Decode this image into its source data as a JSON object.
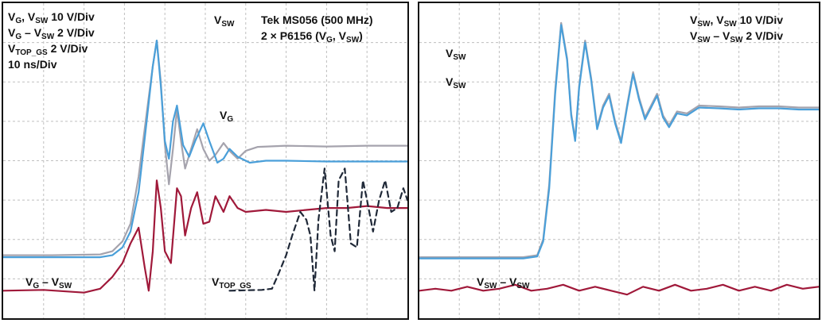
{
  "colors": {
    "vsw_trace": "#a5a3ad",
    "vg_trace": "#4a9fd9",
    "diff_trace": "#a0193a",
    "vtop_trace": "#202938",
    "grid": "#bfbfbf",
    "frame": "#111111"
  },
  "chart_data": [
    {
      "type": "line",
      "panel": "left",
      "grid": true,
      "grid_divisions": {
        "x": 10,
        "y": 8
      },
      "settings": {
        "scale_vg_vsw": {
          "V": "V",
          "g": "G",
          "comma": ", ",
          "vsw_sub": "SW",
          "rest": " 10 V/Div"
        },
        "scale_diff": {
          "V": "V",
          "g": "G",
          "dash": " – V",
          "sw": "SW",
          "rest": " 2 V/Div"
        },
        "scale_vtop": {
          "V": "V",
          "sub": "TOP_GS",
          "rest": " 2 V/Div"
        },
        "timebase": "10 ns/Div",
        "instrument": "Tek MS056 (500 MHz)",
        "probes": {
          "prefix": "2 × P6156 (V",
          "g": "G",
          "comma": ", V",
          "sw": "SW",
          "close": ")"
        }
      },
      "trace_labels": {
        "vsw": {
          "V": "V",
          "sub": "SW"
        },
        "vg": {
          "V": "V",
          "sub": "G"
        },
        "diff": {
          "V": "V",
          "g": "G",
          "dash": " – V",
          "sw": "SW"
        },
        "vtop": {
          "V": "V",
          "sub": "TOP_GS"
        }
      },
      "series": [
        {
          "key": "vsw",
          "label": "V_SW",
          "color": "#a5a3ad",
          "dashed": false,
          "points": [
            [
              0,
              6.4
            ],
            [
              1.2,
              6.4
            ],
            [
              2.4,
              6.38
            ],
            [
              2.7,
              6.3
            ],
            [
              2.95,
              6.05
            ],
            [
              3.15,
              5.6
            ],
            [
              3.35,
              4.4
            ],
            [
              3.55,
              2.8
            ],
            [
              3.7,
              1.6
            ],
            [
              3.8,
              0.95
            ],
            [
              3.9,
              2.0
            ],
            [
              4.0,
              3.6
            ],
            [
              4.1,
              4.6
            ],
            [
              4.2,
              3.7
            ],
            [
              4.3,
              2.7
            ],
            [
              4.4,
              3.5
            ],
            [
              4.5,
              4.2
            ],
            [
              4.65,
              3.7
            ],
            [
              4.8,
              3.2
            ],
            [
              4.95,
              3.7
            ],
            [
              5.1,
              4.0
            ],
            [
              5.25,
              3.85
            ],
            [
              5.45,
              3.55
            ],
            [
              5.6,
              3.75
            ],
            [
              5.8,
              3.95
            ],
            [
              6.0,
              3.75
            ],
            [
              6.3,
              3.65
            ],
            [
              7.0,
              3.62
            ],
            [
              8.0,
              3.64
            ],
            [
              9.0,
              3.62
            ],
            [
              10,
              3.62
            ]
          ]
        },
        {
          "key": "vg",
          "label": "V_G",
          "color": "#4a9fd9",
          "dashed": false,
          "points": [
            [
              0,
              6.45
            ],
            [
              1.2,
              6.45
            ],
            [
              2.4,
              6.45
            ],
            [
              2.7,
              6.4
            ],
            [
              2.95,
              6.2
            ],
            [
              3.15,
              5.8
            ],
            [
              3.35,
              4.8
            ],
            [
              3.55,
              3.0
            ],
            [
              3.7,
              1.6
            ],
            [
              3.8,
              0.95
            ],
            [
              3.9,
              2.1
            ],
            [
              4.0,
              3.5
            ],
            [
              4.1,
              3.95
            ],
            [
              4.2,
              3.0
            ],
            [
              4.3,
              2.6
            ],
            [
              4.45,
              3.6
            ],
            [
              4.6,
              3.9
            ],
            [
              4.75,
              3.5
            ],
            [
              4.95,
              3.05
            ],
            [
              5.1,
              3.5
            ],
            [
              5.3,
              4.05
            ],
            [
              5.45,
              3.95
            ],
            [
              5.6,
              3.7
            ],
            [
              5.8,
              3.9
            ],
            [
              6.1,
              4.05
            ],
            [
              6.5,
              4.0
            ],
            [
              7.0,
              4.0
            ],
            [
              8.0,
              4.02
            ],
            [
              9.0,
              4.02
            ],
            [
              10,
              4.02
            ]
          ]
        },
        {
          "key": "diff",
          "label": "V_G – V_SW",
          "color": "#a0193a",
          "dashed": false,
          "points": [
            [
              0,
              7.3
            ],
            [
              1.0,
              7.28
            ],
            [
              2.0,
              7.35
            ],
            [
              2.4,
              7.25
            ],
            [
              2.7,
              6.95
            ],
            [
              2.95,
              6.6
            ],
            [
              3.15,
              6.1
            ],
            [
              3.35,
              5.7
            ],
            [
              3.5,
              6.7
            ],
            [
              3.6,
              7.3
            ],
            [
              3.7,
              6.3
            ],
            [
              3.8,
              4.5
            ],
            [
              3.9,
              5.2
            ],
            [
              4.0,
              6.3
            ],
            [
              4.15,
              6.6
            ],
            [
              4.3,
              4.7
            ],
            [
              4.4,
              4.9
            ],
            [
              4.5,
              5.9
            ],
            [
              4.65,
              5.2
            ],
            [
              4.8,
              4.8
            ],
            [
              4.95,
              5.6
            ],
            [
              5.1,
              5.55
            ],
            [
              5.25,
              4.9
            ],
            [
              5.45,
              5.3
            ],
            [
              5.6,
              4.9
            ],
            [
              5.8,
              5.2
            ],
            [
              6.0,
              5.3
            ],
            [
              6.5,
              5.25
            ],
            [
              7.0,
              5.3
            ],
            [
              7.5,
              5.25
            ],
            [
              8.0,
              5.2
            ],
            [
              8.5,
              5.2
            ],
            [
              9.0,
              5.15
            ],
            [
              9.5,
              5.2
            ],
            [
              10,
              5.2
            ]
          ]
        },
        {
          "key": "vtop",
          "label": "V_TOP_GS",
          "color": "#202938",
          "dashed": true,
          "points": [
            [
              5.6,
              7.3
            ],
            [
              6.4,
              7.28
            ],
            [
              6.65,
              7.25
            ],
            [
              6.8,
              6.9
            ],
            [
              7.0,
              6.4
            ],
            [
              7.15,
              5.9
            ],
            [
              7.35,
              5.3
            ],
            [
              7.5,
              5.5
            ],
            [
              7.6,
              5.9
            ],
            [
              7.7,
              7.3
            ],
            [
              7.8,
              5.5
            ],
            [
              7.95,
              4.2
            ],
            [
              8.1,
              5.9
            ],
            [
              8.2,
              6.3
            ],
            [
              8.3,
              4.5
            ],
            [
              8.45,
              4.2
            ],
            [
              8.6,
              6.1
            ],
            [
              8.75,
              6.2
            ],
            [
              8.9,
              4.5
            ],
            [
              9.0,
              5.0
            ],
            [
              9.15,
              5.8
            ],
            [
              9.3,
              5.0
            ],
            [
              9.45,
              4.5
            ],
            [
              9.6,
              5.3
            ],
            [
              9.75,
              5.2
            ],
            [
              9.9,
              4.7
            ],
            [
              10,
              5.0
            ]
          ]
        }
      ]
    },
    {
      "type": "line",
      "panel": "right",
      "grid": true,
      "grid_divisions": {
        "x": 10,
        "y": 8
      },
      "settings": {
        "scale_vsw": {
          "V": "V",
          "sub1": "SW",
          "comma": ", V",
          "sub2": "SW",
          "rest": " 10 V/Div"
        },
        "scale_diff": {
          "V": "V",
          "sub1": "SW",
          "dash": " – V",
          "sub2": "SW",
          "rest": " 2 V/Div"
        }
      },
      "trace_labels": {
        "vsw_a": {
          "V": "V",
          "sub": "SW"
        },
        "vsw_b": {
          "V": "V",
          "sub": "SW"
        },
        "diff": {
          "V": "V",
          "sub1": "SW",
          "dash": " – V",
          "sub2": "SW"
        }
      },
      "series": [
        {
          "key": "vsw_a",
          "label": "V_SW",
          "color": "#a5a3ad",
          "dashed": false,
          "points": [
            [
              0,
              6.45
            ],
            [
              1.5,
              6.45
            ],
            [
              2.6,
              6.45
            ],
            [
              2.95,
              6.4
            ],
            [
              3.1,
              6.0
            ],
            [
              3.25,
              4.6
            ],
            [
              3.4,
              2.2
            ],
            [
              3.55,
              0.5
            ],
            [
              3.7,
              1.4
            ],
            [
              3.8,
              2.8
            ],
            [
              3.9,
              3.45
            ],
            [
              4.0,
              2.1
            ],
            [
              4.15,
              0.95
            ],
            [
              4.3,
              1.9
            ],
            [
              4.45,
              3.15
            ],
            [
              4.6,
              2.6
            ],
            [
              4.75,
              2.3
            ],
            [
              4.9,
              3.0
            ],
            [
              5.05,
              3.5
            ],
            [
              5.2,
              2.6
            ],
            [
              5.35,
              1.75
            ],
            [
              5.5,
              2.4
            ],
            [
              5.65,
              2.9
            ],
            [
              5.8,
              2.6
            ],
            [
              5.95,
              2.3
            ],
            [
              6.1,
              2.85
            ],
            [
              6.25,
              3.1
            ],
            [
              6.45,
              2.75
            ],
            [
              6.7,
              2.8
            ],
            [
              7.0,
              2.6
            ],
            [
              7.5,
              2.62
            ],
            [
              8.0,
              2.65
            ],
            [
              8.5,
              2.62
            ],
            [
              9.0,
              2.62
            ],
            [
              9.5,
              2.65
            ],
            [
              10,
              2.65
            ]
          ]
        },
        {
          "key": "vsw_b",
          "label": "V_SW",
          "color": "#4a9fd9",
          "dashed": false,
          "points": [
            [
              0,
              6.48
            ],
            [
              1.5,
              6.48
            ],
            [
              2.6,
              6.48
            ],
            [
              2.95,
              6.43
            ],
            [
              3.1,
              6.05
            ],
            [
              3.25,
              4.7
            ],
            [
              3.4,
              2.3
            ],
            [
              3.55,
              0.55
            ],
            [
              3.7,
              1.45
            ],
            [
              3.8,
              2.85
            ],
            [
              3.9,
              3.5
            ],
            [
              4.0,
              2.15
            ],
            [
              4.15,
              1.0
            ],
            [
              4.3,
              1.95
            ],
            [
              4.45,
              3.2
            ],
            [
              4.6,
              2.65
            ],
            [
              4.75,
              2.35
            ],
            [
              4.9,
              3.05
            ],
            [
              5.05,
              3.55
            ],
            [
              5.2,
              2.65
            ],
            [
              5.35,
              1.8
            ],
            [
              5.5,
              2.45
            ],
            [
              5.65,
              2.95
            ],
            [
              5.8,
              2.65
            ],
            [
              5.95,
              2.35
            ],
            [
              6.1,
              2.9
            ],
            [
              6.25,
              3.15
            ],
            [
              6.45,
              2.8
            ],
            [
              6.7,
              2.85
            ],
            [
              7.0,
              2.65
            ],
            [
              7.5,
              2.67
            ],
            [
              8.0,
              2.7
            ],
            [
              8.5,
              2.67
            ],
            [
              9.0,
              2.67
            ],
            [
              9.5,
              2.7
            ],
            [
              10,
              2.7
            ]
          ]
        },
        {
          "key": "diff",
          "label": "V_SW – V_SW",
          "color": "#a0193a",
          "dashed": false,
          "points": [
            [
              0,
              7.3
            ],
            [
              0.4,
              7.25
            ],
            [
              0.8,
              7.3
            ],
            [
              1.2,
              7.2
            ],
            [
              1.6,
              7.3
            ],
            [
              2.0,
              7.25
            ],
            [
              2.4,
              7.15
            ],
            [
              2.8,
              7.3
            ],
            [
              3.2,
              7.25
            ],
            [
              3.6,
              7.15
            ],
            [
              4.0,
              7.3
            ],
            [
              4.4,
              7.2
            ],
            [
              4.8,
              7.3
            ],
            [
              5.2,
              7.4
            ],
            [
              5.6,
              7.2
            ],
            [
              6.0,
              7.3
            ],
            [
              6.4,
              7.15
            ],
            [
              6.8,
              7.3
            ],
            [
              7.2,
              7.25
            ],
            [
              7.6,
              7.15
            ],
            [
              8.0,
              7.3
            ],
            [
              8.4,
              7.2
            ],
            [
              8.8,
              7.3
            ],
            [
              9.2,
              7.15
            ],
            [
              9.6,
              7.25
            ],
            [
              10,
              7.2
            ]
          ]
        }
      ]
    }
  ]
}
